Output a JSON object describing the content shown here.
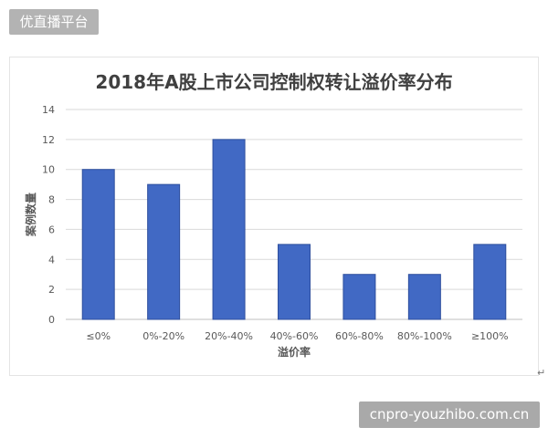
{
  "watermarks": {
    "top_label": "优直播平台",
    "bottom_label": "cnpro-youzhibo.com.cn"
  },
  "return_mark": "↵",
  "chart_data": {
    "type": "bar",
    "title": "2018年A股上市公司控制权转让溢价率分布",
    "xlabel": "溢价率",
    "ylabel": "案例数量",
    "categories": [
      "≤0%",
      "0%-20%",
      "20%-40%",
      "40%-60%",
      "60%-80%",
      "80%-100%",
      "≥100%"
    ],
    "values": [
      10,
      9,
      12,
      5,
      3,
      3,
      5
    ],
    "ylim": [
      0,
      14
    ],
    "yticks": [
      0,
      2,
      4,
      6,
      8,
      10,
      12,
      14
    ],
    "grid": true,
    "legend": "none",
    "colors": {
      "bar_fill": "#4169c4",
      "bar_edge": "#2e4f9e",
      "grid": "#d9d9d9",
      "axis": "#bfbfbf",
      "tick_text": "#595959"
    }
  }
}
